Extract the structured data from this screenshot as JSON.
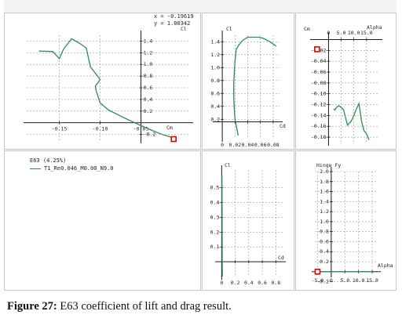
{
  "caption": {
    "label": "Figure 27:",
    "text": "E63 coefficient of lift and drag result."
  },
  "readout": {
    "x": "x  =  -0.19619",
    "y": "y  =   1.00342"
  },
  "legend": {
    "title": "E63   (4.25%)",
    "entry": "T1_Re0.046_M0.00_N9.0"
  },
  "colors": {
    "curve": "#2e8b57",
    "marker": "#e00000",
    "grid": "#9a9a9a",
    "axis": "#000000"
  },
  "chart_data": [
    {
      "type": "line",
      "name": "Cm vs Cl",
      "xlabel": "Cm",
      "ylabel": "Cl",
      "xlim": [
        -0.19,
        0.01
      ],
      "ylim": [
        -0.3,
        1.5
      ],
      "xticks": [
        -0.15,
        -0.1,
        -0.05
      ],
      "xtick_labels": [
        "-0.15",
        "-0.10",
        "-0.05"
      ],
      "yticks": [
        1.4,
        1.2,
        1.0,
        0.8,
        0.6,
        0.4,
        0.2,
        -0.2
      ],
      "ytick_labels": [
        "1.4",
        "1.2",
        "1.0",
        "0.8",
        "0.6",
        "0.4",
        "0.2",
        "-0.2"
      ],
      "x": [
        -0.175,
        -0.158,
        -0.15,
        -0.145,
        -0.135,
        -0.125,
        -0.117,
        -0.112,
        -0.106,
        -0.1,
        -0.106,
        -0.105,
        -0.1,
        -0.09,
        -0.07,
        -0.05,
        -0.035,
        -0.022,
        -0.01
      ],
      "y": [
        1.23,
        1.22,
        1.1,
        1.26,
        1.44,
        1.36,
        1.28,
        0.96,
        0.85,
        0.74,
        0.63,
        0.55,
        0.34,
        0.22,
        0.08,
        -0.05,
        -0.14,
        -0.21,
        -0.26
      ],
      "marker_point": {
        "x": -0.01,
        "y": -0.28
      }
    },
    {
      "type": "line",
      "name": "Cd vs Cl",
      "xlabel": "Cd",
      "ylabel": "Cl",
      "xlim": [
        -0.01,
        0.09
      ],
      "ylim": [
        -0.1,
        1.5
      ],
      "xticks": [
        0,
        0.02,
        0.04,
        0.06,
        0.08
      ],
      "xtick_labels": [
        "0",
        "0.02",
        "0.04",
        "0.06",
        "0.08"
      ],
      "yticks": [
        1.4,
        1.2,
        1.0,
        0.8,
        0.6,
        0.4,
        0.2
      ],
      "ytick_labels": [
        "1.4",
        "1.2",
        "1.0",
        "0.8",
        "0.6",
        "0.4",
        "0.2"
      ],
      "x": [
        0.025,
        0.022,
        0.02,
        0.019,
        0.018,
        0.018,
        0.019,
        0.02,
        0.022,
        0.026,
        0.032,
        0.04,
        0.05,
        0.058,
        0.065,
        0.075,
        0.085
      ],
      "y": [
        -0.05,
        0.1,
        0.2,
        0.35,
        0.55,
        0.75,
        0.95,
        1.1,
        1.28,
        1.35,
        1.42,
        1.47,
        1.47,
        1.47,
        1.45,
        1.4,
        1.33
      ]
    },
    {
      "type": "line",
      "name": "Cm vs Alpha",
      "xlabel": "Alpha",
      "ylabel": "Cm",
      "xlim": [
        -6,
        20
      ],
      "ylim": [
        -0.19,
        0.005
      ],
      "xticks": [
        0,
        5,
        10,
        15
      ],
      "xtick_labels": [
        "0",
        "5.0",
        "10.0",
        "15.0"
      ],
      "yticks": [
        -0.02,
        -0.04,
        -0.06,
        -0.08,
        -0.1,
        -0.12,
        -0.14,
        -0.16,
        -0.18
      ],
      "ytick_labels": [
        "-0.02",
        "-0.04",
        "-0.06",
        "-0.08",
        "-0.10",
        "-0.12",
        "-0.14",
        "-0.16",
        "-0.18"
      ],
      "x": [
        2.0,
        2.5,
        3.0,
        4.0,
        5.0,
        6.0,
        6.5,
        7.5,
        9.0,
        10.0,
        11.0,
        12.0,
        13.0,
        14.0,
        15.0,
        16.0
      ],
      "y": [
        -0.128,
        -0.13,
        -0.126,
        -0.122,
        -0.125,
        -0.13,
        -0.14,
        -0.158,
        -0.15,
        -0.14,
        -0.128,
        -0.118,
        -0.15,
        -0.168,
        -0.174,
        -0.185
      ],
      "marker_point": {
        "x": -4.5,
        "y": -0.018
      }
    },
    {
      "type": "line",
      "name": "Cd vs Cl (zoom)",
      "xlabel": "Cd",
      "ylabel": "Cl",
      "xlim": [
        -0.05,
        0.9
      ],
      "ylim": [
        -0.1,
        0.62
      ],
      "xticks": [
        0,
        0.2,
        0.4,
        0.6,
        0.8
      ],
      "xtick_labels": [
        "0",
        "0.2",
        "0.4",
        "0.6",
        "0.8"
      ],
      "yticks": [
        0.5,
        0.4,
        0.3,
        0.2,
        0.1
      ],
      "ytick_labels": [
        "0.5",
        "0.4",
        "0.3",
        "0.2",
        "0.1"
      ],
      "x": [
        0.005,
        0.006,
        0.007,
        0.008,
        0.009,
        0.01
      ],
      "y": [
        0.58,
        0.4,
        0.2,
        0.0,
        -0.05,
        -0.1
      ]
    },
    {
      "type": "line",
      "name": "Hinge Fy vs Alpha",
      "xlabel": "Alpha",
      "ylabel": "Hinge Fy",
      "xlim": [
        -6,
        17
      ],
      "ylim": [
        -0.05,
        2.0
      ],
      "xticks": [
        -5,
        0,
        5,
        10,
        15
      ],
      "xtick_labels": [
        "-5.0",
        "0",
        "5.0",
        "10.0",
        "15.0"
      ],
      "yticks": [
        2.0,
        1.8,
        1.6,
        1.4,
        1.2,
        1.0,
        0.8,
        0.6,
        0.4,
        0.2,
        -0.2
      ],
      "ytick_labels": [
        "2.0",
        "1.8",
        "1.6",
        "1.4",
        "1.2",
        "1.0",
        "0.8",
        "0.6",
        "0.4",
        "0.2",
        "-0.2"
      ],
      "x": [
        -5,
        0,
        5,
        10,
        15
      ],
      "y": [
        0,
        0,
        0,
        0,
        0
      ],
      "marker_point": {
        "x": -5,
        "y": 0
      }
    }
  ]
}
